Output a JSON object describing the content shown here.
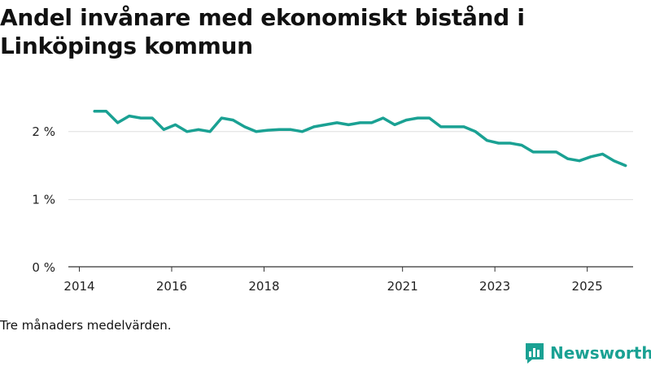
{
  "chart_data": {
    "type": "line",
    "title": "Andel invånare med ekonomiskt bistånd i Linköpings kommun",
    "xlabel": "",
    "ylabel": "",
    "ylim": [
      0,
      2.5
    ],
    "y_ticks": [
      {
        "value": 0,
        "label": "0 %"
      },
      {
        "value": 1,
        "label": "1 %"
      },
      {
        "value": 2,
        "label": "2 %"
      }
    ],
    "x_ticks": [
      {
        "value": 2014,
        "label": "2014"
      },
      {
        "value": 2016,
        "label": "2016"
      },
      {
        "value": 2018,
        "label": "2018"
      },
      {
        "value": 2021,
        "label": "2021"
      },
      {
        "value": 2023,
        "label": "2023"
      },
      {
        "value": 2025,
        "label": "2025"
      }
    ],
    "xlim": [
      2014.0,
      2025.5
    ],
    "grid": true,
    "series": [
      {
        "name": "Andel invånare med ekonomiskt bistånd",
        "color": "#1aa193",
        "x": [
          2014.33,
          2014.58,
          2014.83,
          2015.08,
          2015.33,
          2015.58,
          2015.83,
          2016.08,
          2016.33,
          2016.58,
          2016.83,
          2017.08,
          2017.33,
          2017.58,
          2017.83,
          2018.08,
          2018.33,
          2018.58,
          2018.83,
          2019.08,
          2019.33,
          2019.58,
          2019.83,
          2020.08,
          2020.33,
          2020.58,
          2020.83,
          2021.08,
          2021.33,
          2021.58,
          2021.83,
          2022.08,
          2022.33,
          2022.58,
          2022.83,
          2023.08,
          2023.33,
          2023.58,
          2023.83,
          2024.08,
          2024.33,
          2024.58,
          2024.83,
          2025.08,
          2025.33,
          2025.58,
          2025.83
        ],
        "values": [
          2.3,
          2.3,
          2.13,
          2.23,
          2.2,
          2.2,
          2.03,
          2.1,
          2.0,
          2.03,
          2.0,
          2.2,
          2.17,
          2.07,
          2.0,
          2.02,
          2.03,
          2.03,
          2.0,
          2.07,
          2.1,
          2.13,
          2.1,
          2.13,
          2.13,
          2.2,
          2.1,
          2.17,
          2.2,
          2.2,
          2.07,
          2.07,
          2.07,
          2.0,
          1.87,
          1.83,
          1.83,
          1.8,
          1.7,
          1.7,
          1.7,
          1.6,
          1.57,
          1.63,
          1.67,
          1.57,
          1.5
        ]
      }
    ]
  },
  "note": "Tre månaders medelvärden.",
  "brand": {
    "name": "Newsworthy",
    "color": "#1aa193",
    "icon": "newsworthy-logo-icon"
  }
}
